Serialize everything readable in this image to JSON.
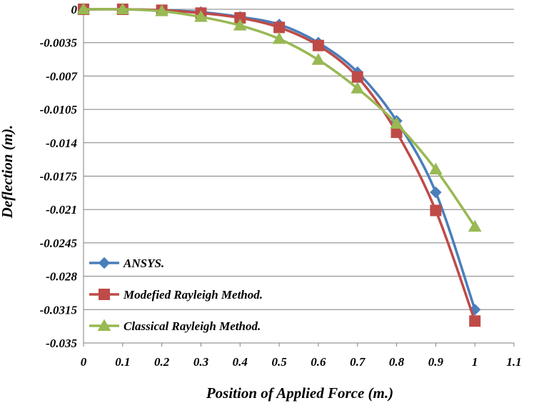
{
  "chart_data": {
    "type": "line",
    "title": "",
    "xlabel": "Position of Applied Force (m.)",
    "ylabel": "Deflection (m).",
    "xlim": [
      0,
      1.1
    ],
    "ylim": [
      -0.035,
      0
    ],
    "x_ticks": [
      0,
      0.1,
      0.2,
      0.3,
      0.4,
      0.5,
      0.6,
      0.7,
      0.8,
      0.9,
      1,
      1.1
    ],
    "x_tick_labels": [
      "0",
      "0.1",
      "0.2",
      "0.3",
      "0.4",
      "0.5",
      "0.6",
      "0.7",
      "0.8",
      "0.9",
      "1",
      "1.1"
    ],
    "y_ticks": [
      0,
      -0.0035,
      -0.007,
      -0.0105,
      -0.014,
      -0.0175,
      -0.021,
      -0.0245,
      -0.028,
      -0.0315,
      -0.035
    ],
    "y_tick_labels": [
      "0",
      "-0.0035",
      "-0.007",
      "-0.0105",
      "-0.014",
      "-0.0175",
      "-0.021",
      "-0.0245",
      "-0.028",
      "-0.0315",
      "-0.035"
    ],
    "grid": "horizontal",
    "legend_position": "bottom-left",
    "x": [
      0,
      0.1,
      0.2,
      0.3,
      0.4,
      0.5,
      0.6,
      0.7,
      0.8,
      0.9,
      1.0
    ],
    "series": [
      {
        "name": "ANSYS.",
        "color": "#4a7ebb",
        "marker": "diamond",
        "values": [
          0,
          0,
          -0.0001,
          -0.0003,
          -0.0008,
          -0.0016,
          -0.0035,
          -0.0066,
          -0.0117,
          -0.0192,
          -0.0315
        ]
      },
      {
        "name": "Modefied Rayleigh Method.",
        "color": "#be4b48",
        "marker": "square",
        "values": [
          0,
          0,
          -0.0001,
          -0.0004,
          -0.0009,
          -0.0019,
          -0.0038,
          -0.0071,
          -0.0129,
          -0.0211,
          -0.0327
        ]
      },
      {
        "name": "Classical Rayleigh Method.",
        "color": "#98b954",
        "marker": "triangle",
        "values": [
          0,
          0,
          -0.0002,
          -0.0008,
          -0.0017,
          -0.0031,
          -0.0053,
          -0.0083,
          -0.012,
          -0.0168,
          -0.0228
        ]
      }
    ]
  }
}
